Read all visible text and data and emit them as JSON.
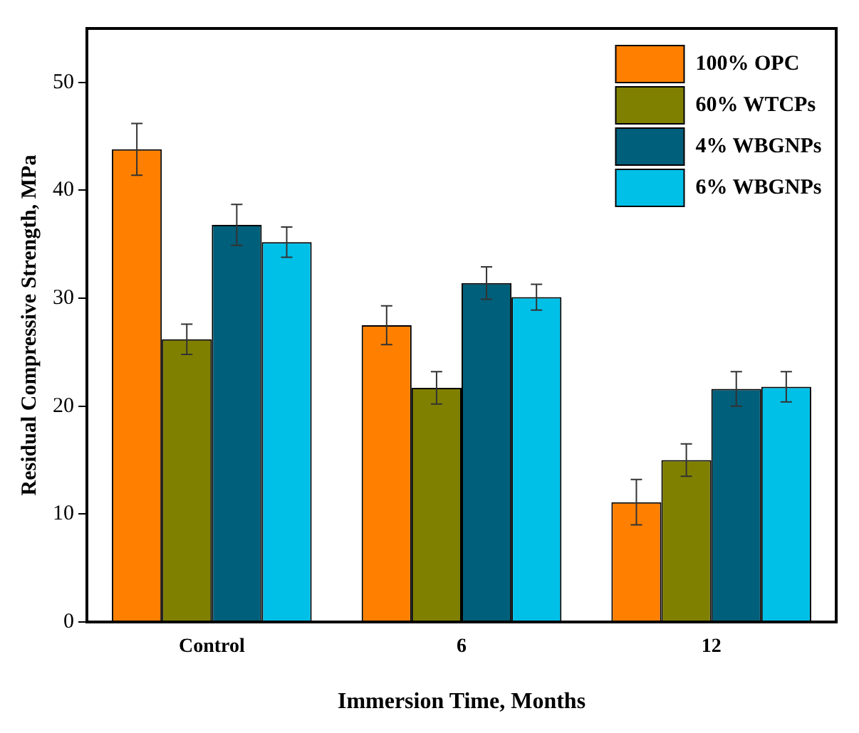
{
  "chart_data": {
    "type": "bar",
    "xlabel": "Immersion Time, Months",
    "ylabel": "Residual Compressive Strength, MPa",
    "categories": [
      "Control",
      "6",
      "12"
    ],
    "series": [
      {
        "name": "100% OPC",
        "color": "#ff8000",
        "values": [
          43.8,
          27.5,
          11.1
        ],
        "errors": [
          2.4,
          1.8,
          2.1
        ]
      },
      {
        "name": "60% WTCPs",
        "color": "#808000",
        "values": [
          26.2,
          21.7,
          15.0
        ],
        "errors": [
          1.4,
          1.5,
          1.5
        ]
      },
      {
        "name": "4% WBGNPs",
        "color": "#005f7a",
        "values": [
          36.8,
          31.4,
          21.6
        ],
        "errors": [
          1.9,
          1.5,
          1.6
        ]
      },
      {
        "name": "6% WBGNPs",
        "color": "#00c0e8",
        "values": [
          35.2,
          30.1,
          21.8
        ],
        "errors": [
          1.4,
          1.2,
          1.4
        ]
      }
    ],
    "ylim": [
      0,
      55
    ],
    "yticks": [
      0,
      10,
      20,
      30,
      40,
      50
    ],
    "grid": false,
    "legend": "top right"
  }
}
